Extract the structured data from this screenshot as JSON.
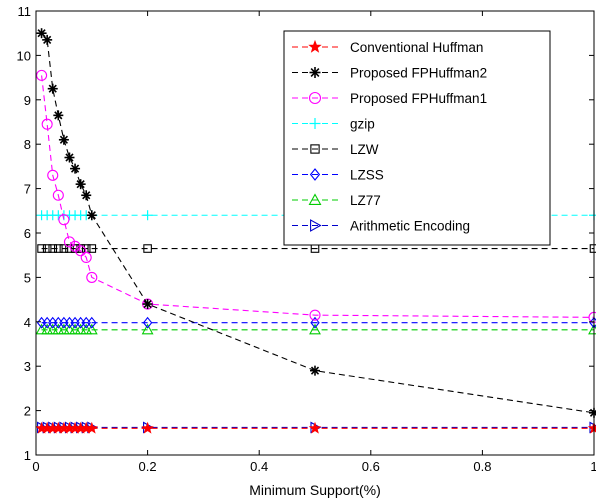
{
  "chart_data": {
    "type": "line",
    "title": "",
    "xlabel": "Minimum Support(%)",
    "ylabel": "",
    "xlim": [
      0,
      1
    ],
    "ylim": [
      1,
      11
    ],
    "xticks": [
      0,
      0.2,
      0.4,
      0.6,
      0.8,
      1
    ],
    "xtick_labels": [
      "0",
      "0.2",
      "0.4",
      "0.6",
      "0.8",
      "1"
    ],
    "yticks": [
      1,
      2,
      3,
      4,
      5,
      6,
      7,
      8,
      9,
      10,
      11
    ],
    "ytick_labels": [
      "1",
      "2",
      "3",
      "4",
      "5",
      "6",
      "7",
      "8",
      "9",
      "10",
      "11"
    ],
    "grid": false,
    "legend_position": "top-right",
    "series": [
      {
        "name": "Conventional Huffman",
        "color": "#ff0000",
        "marker": "star",
        "x": [
          0.01,
          0.02,
          0.03,
          0.04,
          0.05,
          0.06,
          0.07,
          0.08,
          0.09,
          0.1,
          0.2,
          0.5,
          1.0
        ],
        "y": [
          1.6,
          1.6,
          1.6,
          1.6,
          1.6,
          1.6,
          1.6,
          1.6,
          1.6,
          1.6,
          1.6,
          1.6,
          1.6
        ]
      },
      {
        "name": "Proposed FPHuffman2",
        "color": "#000000",
        "marker": "asterisk",
        "x": [
          0.01,
          0.02,
          0.03,
          0.04,
          0.05,
          0.06,
          0.07,
          0.08,
          0.09,
          0.1,
          0.2,
          0.5,
          1.0
        ],
        "y": [
          10.5,
          10.35,
          9.25,
          8.65,
          8.1,
          7.7,
          7.45,
          7.1,
          6.85,
          6.4,
          4.4,
          2.9,
          1.95
        ]
      },
      {
        "name": "Proposed FPHuffman1",
        "color": "#ff00ff",
        "marker": "circle",
        "x": [
          0.01,
          0.02,
          0.03,
          0.04,
          0.05,
          0.06,
          0.07,
          0.08,
          0.09,
          0.1,
          0.2,
          0.5,
          1.0
        ],
        "y": [
          9.55,
          8.45,
          7.3,
          6.85,
          6.3,
          5.8,
          5.7,
          5.6,
          5.45,
          5.0,
          4.4,
          4.15,
          4.1
        ]
      },
      {
        "name": "gzip",
        "color": "#00ffff",
        "marker": "plus",
        "x": [
          0.01,
          0.02,
          0.03,
          0.04,
          0.05,
          0.06,
          0.07,
          0.08,
          0.09,
          0.1,
          0.2,
          0.5,
          1.0
        ],
        "y": [
          6.4,
          6.4,
          6.4,
          6.4,
          6.4,
          6.4,
          6.4,
          6.4,
          6.4,
          6.4,
          6.4,
          6.4,
          6.4
        ]
      },
      {
        "name": "LZW",
        "color": "#000000",
        "marker": "square",
        "x": [
          0.01,
          0.02,
          0.03,
          0.04,
          0.05,
          0.06,
          0.07,
          0.08,
          0.09,
          0.1,
          0.2,
          0.5,
          1.0
        ],
        "y": [
          5.65,
          5.65,
          5.65,
          5.65,
          5.65,
          5.65,
          5.65,
          5.65,
          5.65,
          5.65,
          5.65,
          5.65,
          5.65
        ]
      },
      {
        "name": "LZSS",
        "color": "#0000ff",
        "marker": "diamond",
        "x": [
          0.01,
          0.02,
          0.03,
          0.04,
          0.05,
          0.06,
          0.07,
          0.08,
          0.09,
          0.1,
          0.2,
          0.5,
          1.0
        ],
        "y": [
          3.98,
          3.98,
          3.98,
          3.98,
          3.98,
          3.98,
          3.98,
          3.98,
          3.98,
          3.98,
          3.98,
          3.98,
          3.98
        ]
      },
      {
        "name": "LZ77",
        "color": "#00cc00",
        "marker": "triangle-up",
        "x": [
          0.01,
          0.02,
          0.03,
          0.04,
          0.05,
          0.06,
          0.07,
          0.08,
          0.09,
          0.1,
          0.2,
          0.5,
          1.0
        ],
        "y": [
          3.82,
          3.82,
          3.82,
          3.82,
          3.82,
          3.82,
          3.82,
          3.82,
          3.82,
          3.82,
          3.82,
          3.82,
          3.82
        ]
      },
      {
        "name": "Arithmetic Encoding",
        "color": "#0000cc",
        "marker": "triangle-right",
        "x": [
          0.01,
          0.02,
          0.03,
          0.04,
          0.05,
          0.06,
          0.07,
          0.08,
          0.09,
          0.1,
          0.2,
          0.5,
          1.0
        ],
        "y": [
          1.62,
          1.62,
          1.62,
          1.62,
          1.62,
          1.62,
          1.62,
          1.62,
          1.62,
          1.62,
          1.62,
          1.62,
          1.62
        ]
      }
    ]
  }
}
